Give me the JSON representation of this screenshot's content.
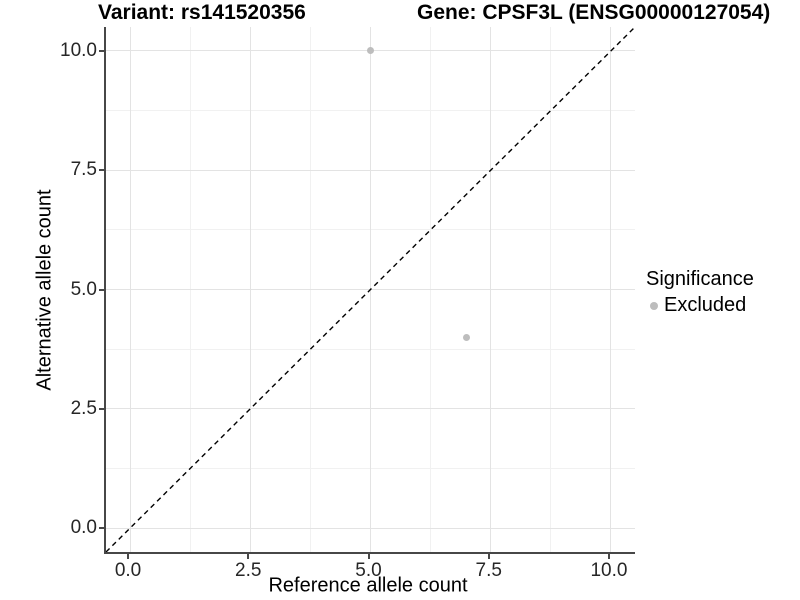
{
  "titles": {
    "left": "Variant: rs141520356",
    "right": "Gene: CPSF3L (ENSG00000127054)"
  },
  "chart_data": {
    "type": "scatter",
    "xlabel": "Reference allele count",
    "ylabel": "Alternative allele count",
    "xlim": [
      -0.5,
      10.5
    ],
    "ylim": [
      -0.5,
      10.5
    ],
    "grid": true,
    "x_ticks": {
      "values": [
        0,
        2.5,
        5,
        7.5,
        10
      ],
      "labels": [
        "0.0",
        "2.5",
        "5.0",
        "7.5",
        "10.0"
      ]
    },
    "y_ticks": {
      "values": [
        0,
        2.5,
        5,
        7.5,
        10
      ],
      "labels": [
        "0.0",
        "2.5",
        "5.0",
        "7.5",
        "10.0"
      ]
    },
    "x_minor": [
      1.25,
      3.75,
      6.25,
      8.75
    ],
    "y_minor": [
      1.25,
      3.75,
      6.25,
      8.75
    ],
    "points": [
      {
        "x": 5,
        "y": 10,
        "significance": "Excluded"
      },
      {
        "x": 7,
        "y": 4,
        "significance": "Excluded"
      }
    ],
    "point_color": "#bdbdbd",
    "reference_line": {
      "slope": 1,
      "intercept": 0,
      "style": "dashed",
      "color": "#000000"
    },
    "legend": {
      "position": "right",
      "title": "Significance",
      "items": [
        {
          "label": "Excluded",
          "color": "#bdbdbd"
        }
      ]
    },
    "colors": {
      "grid_major": "#e3e3e3",
      "grid_minor": "#f1f1f1",
      "axis_line": "#474747",
      "tick_text": "#262626"
    }
  }
}
